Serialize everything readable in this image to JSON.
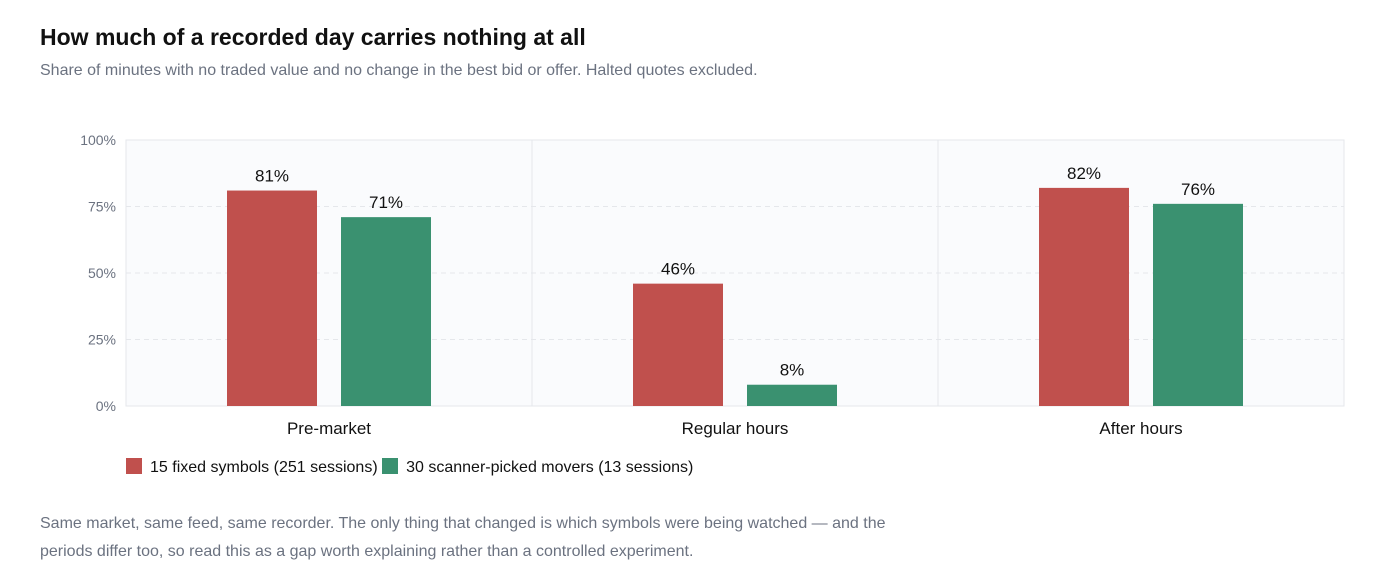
{
  "header": {
    "title": "How much of a recorded day carries nothing at all",
    "subtitle": "Share of minutes with no traded value and no change in the best bid or offer. Halted quotes excluded."
  },
  "chart_data": {
    "type": "bar",
    "categories": [
      "Pre-market",
      "Regular hours",
      "After hours"
    ],
    "series": [
      {
        "name": "15 fixed symbols (251 sessions)",
        "values": [
          81,
          46,
          82
        ],
        "color": "#c0504d"
      },
      {
        "name": "30 scanner-picked movers (13 sessions)",
        "values": [
          71,
          8,
          76
        ],
        "color": "#3a9170"
      }
    ],
    "ylim": [
      0,
      100
    ],
    "yticks": [
      0,
      25,
      50,
      75,
      100
    ],
    "ytick_labels": [
      "0%",
      "25%",
      "50%",
      "75%",
      "100%"
    ],
    "data_label_suffix": "%",
    "grid": "horizontal-dashed",
    "legend_placement": "bottom-left",
    "plot_background": "#fafbfd",
    "grid_color": "#e5e7eb"
  },
  "footer": {
    "note": "Same market, same feed, same recorder. The only thing that changed is which symbols were being watched — and the periods differ too, so read this as a gap worth explaining rather than a controlled experiment."
  }
}
